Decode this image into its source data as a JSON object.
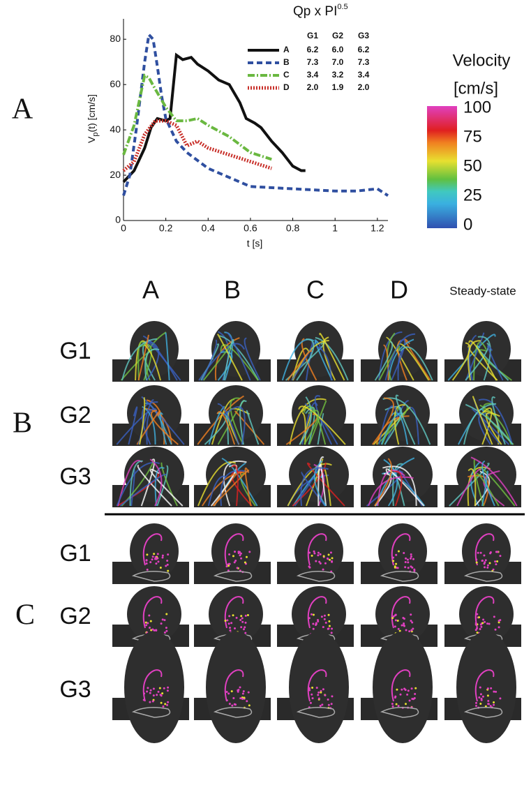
{
  "chart_data": {
    "type": "line",
    "xlabel": "t [s]",
    "ylabel": {
      "main": "V",
      "sub": "p",
      "rest": "(t) [cm/s]"
    },
    "xlim": [
      0,
      1.25
    ],
    "ylim": [
      0,
      89
    ],
    "xticks": [
      0,
      0.2,
      0.4,
      0.6,
      0.8,
      1,
      1.2
    ],
    "yticks": [
      0,
      20,
      40,
      60,
      80
    ],
    "legend_title": {
      "main": "Qp x PI",
      "sup": "0.5"
    },
    "legend_columns": [
      "G1",
      "G2",
      "G3"
    ],
    "series": [
      {
        "name": "A",
        "color": "#111111",
        "dash": "none",
        "width": 4,
        "table": [
          "6.2",
          "6.0",
          "6.2"
        ],
        "x": [
          0,
          0.05,
          0.1,
          0.13,
          0.16,
          0.2,
          0.22,
          0.25,
          0.28,
          0.32,
          0.35,
          0.4,
          0.45,
          0.5,
          0.55,
          0.58,
          0.62,
          0.65,
          0.7,
          0.75,
          0.8,
          0.84,
          0.86
        ],
        "values": [
          17,
          22,
          32,
          41,
          45,
          44,
          45,
          73,
          71,
          72,
          69,
          66,
          62,
          60,
          52,
          45,
          43,
          41,
          35,
          30,
          24,
          22,
          22
        ]
      },
      {
        "name": "B",
        "color": "#2f4fa0",
        "dash": "8 5",
        "width": 4,
        "table": [
          "7.3",
          "7.0",
          "7.3"
        ],
        "x": [
          0,
          0.03,
          0.06,
          0.1,
          0.12,
          0.14,
          0.16,
          0.18,
          0.2,
          0.25,
          0.3,
          0.4,
          0.5,
          0.6,
          0.8,
          1,
          1.1,
          1.2,
          1.25
        ],
        "values": [
          11,
          20,
          40,
          70,
          82,
          80,
          68,
          55,
          45,
          35,
          30,
          23,
          19,
          15,
          14,
          13,
          13,
          14,
          11
        ]
      },
      {
        "name": "C",
        "color": "#6ab840",
        "dash": "10 3 2 3",
        "width": 4,
        "table": [
          "3.4",
          "3.2",
          "3.4"
        ],
        "x": [
          0,
          0.05,
          0.1,
          0.12,
          0.15,
          0.2,
          0.25,
          0.3,
          0.35,
          0.4,
          0.5,
          0.6,
          0.7
        ],
        "values": [
          29,
          42,
          64,
          63,
          58,
          50,
          44,
          44,
          45,
          42,
          37,
          30,
          27
        ]
      },
      {
        "name": "D",
        "color": "#c8302a",
        "dash": "2 2",
        "width": 5,
        "table": [
          "2.0",
          "1.9",
          "2.0"
        ],
        "x": [
          0,
          0.05,
          0.1,
          0.15,
          0.2,
          0.25,
          0.3,
          0.35,
          0.4,
          0.5,
          0.6,
          0.7
        ],
        "values": [
          22,
          26,
          38,
          44,
          44,
          42,
          33,
          35,
          32,
          29,
          26,
          23
        ]
      }
    ]
  },
  "colorbar": {
    "title": [
      "Velocity",
      "[cm/s]"
    ],
    "lim": [
      0,
      100
    ],
    "ticks": [
      0,
      25,
      50,
      75,
      100
    ]
  },
  "panels": {
    "A": "A",
    "B": "B",
    "C": "C"
  },
  "columns": [
    "A",
    "B",
    "C",
    "D",
    "Steady-state"
  ],
  "rows_B": [
    "G1",
    "G2",
    "G3"
  ],
  "rows_C": [
    "G1",
    "G2",
    "G3"
  ]
}
